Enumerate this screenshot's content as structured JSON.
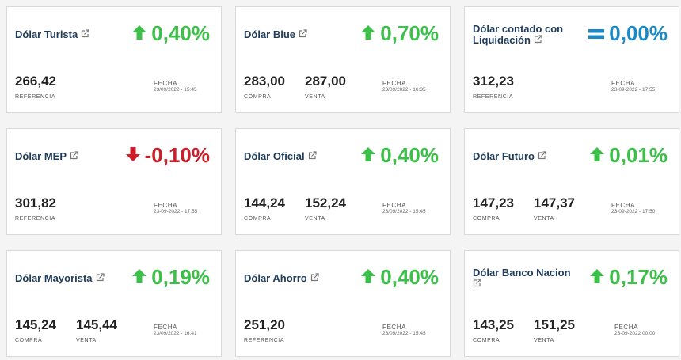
{
  "colors": {
    "up": "#3cc04a",
    "down": "#cc1f2b",
    "equal": "#1a8ac6",
    "title": "#1f3b5a"
  },
  "cards": [
    {
      "title": "Dólar Turista",
      "trend": "up",
      "variation": "0,40%",
      "values": [
        {
          "value": "266,42",
          "label": "REFERENCIA"
        }
      ],
      "date_label": "FECHA",
      "date": "23/09/2022 - 15:45"
    },
    {
      "title": "Dólar Blue",
      "trend": "up",
      "variation": "0,70%",
      "values": [
        {
          "value": "283,00",
          "label": "COMPRA"
        },
        {
          "value": "287,00",
          "label": "VENTA"
        }
      ],
      "date_label": "FECHA",
      "date": "23/09/2022 - 16:35"
    },
    {
      "title": "Dólar contado con Liquidación",
      "trend": "equal",
      "variation": "0,00%",
      "values": [
        {
          "value": "312,23",
          "label": "REFERENCIA"
        }
      ],
      "date_label": "FECHA",
      "date": "23-09-2022 - 17:55"
    },
    {
      "title": "Dólar MEP",
      "trend": "down",
      "variation": "-0,10%",
      "values": [
        {
          "value": "301,82",
          "label": "REFERENCIA"
        }
      ],
      "date_label": "FECHA",
      "date": "23-09-2022 - 17:55"
    },
    {
      "title": "Dólar Oficial",
      "trend": "up",
      "variation": "0,40%",
      "values": [
        {
          "value": "144,24",
          "label": "COMPRA"
        },
        {
          "value": "152,24",
          "label": "VENTA"
        }
      ],
      "date_label": "FECHA",
      "date": "23/09/2022 - 15:45"
    },
    {
      "title": "Dólar Futuro",
      "trend": "up",
      "variation": "0,01%",
      "values": [
        {
          "value": "147,23",
          "label": "COMPRA"
        },
        {
          "value": "147,37",
          "label": "VENTA"
        }
      ],
      "date_label": "FECHA",
      "date": "23-09-2022 - 17:50"
    },
    {
      "title": "Dólar Mayorista",
      "trend": "up",
      "variation": "0,19%",
      "values": [
        {
          "value": "145,24",
          "label": "COMPRA"
        },
        {
          "value": "145,44",
          "label": "VENTA"
        }
      ],
      "date_label": "FECHA",
      "date": "23/09/2022 - 16:41"
    },
    {
      "title": "Dólar Ahorro",
      "trend": "up",
      "variation": "0,40%",
      "values": [
        {
          "value": "251,20",
          "label": "REFERENCIA"
        }
      ],
      "date_label": "FECHA",
      "date": "23/09/2022 - 15:45"
    },
    {
      "title": "Dólar Banco Nacion",
      "trend": "up",
      "variation": "0,17%",
      "values": [
        {
          "value": "143,25",
          "label": "COMPRA"
        },
        {
          "value": "151,25",
          "label": "VENTA"
        }
      ],
      "date_label": "FECHA",
      "date": "23-09-2022 00:00"
    }
  ]
}
